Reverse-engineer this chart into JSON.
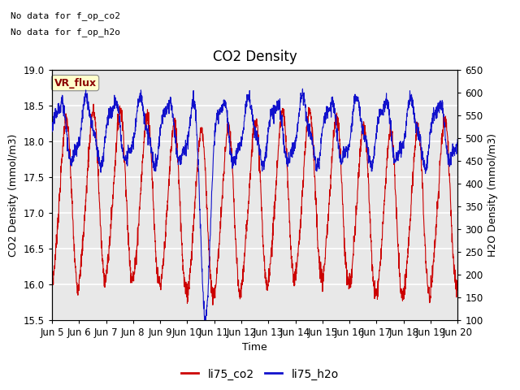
{
  "title": "CO2 Density",
  "xlabel": "Time",
  "ylabel_left": "CO2 Density (mmol/m3)",
  "ylabel_right": "H2O Density (mmol/m3)",
  "ylim_left": [
    15.5,
    19.0
  ],
  "ylim_right": [
    100,
    650
  ],
  "yticks_left": [
    15.5,
    16.0,
    16.5,
    17.0,
    17.5,
    18.0,
    18.5,
    19.0
  ],
  "yticks_right": [
    100,
    150,
    200,
    250,
    300,
    350,
    400,
    450,
    500,
    550,
    600,
    650
  ],
  "xticklabels": [
    "Jun 5",
    "Jun 6",
    "Jun 7",
    "Jun 8",
    "Jun 9",
    "Jun 10",
    "Jun 11",
    "Jun 12",
    "Jun 13",
    "Jun 14",
    "Jun 15",
    "Jun 16",
    "Jun 17",
    "Jun 18",
    "Jun 19",
    "Jun 20"
  ],
  "note_line1": "No data for f_op_co2",
  "note_line2": "No data for f_op_h2o",
  "vr_flux_label": "VR_flux",
  "legend_entries": [
    "li75_co2",
    "li75_h2o"
  ],
  "line_colors": [
    "#cc0000",
    "#1111cc"
  ],
  "background_color": "#e8e8e8",
  "grid_color": "#ffffff",
  "title_fontsize": 12,
  "label_fontsize": 9,
  "tick_fontsize": 8.5,
  "note_fontsize": 8,
  "vr_fontsize": 9
}
